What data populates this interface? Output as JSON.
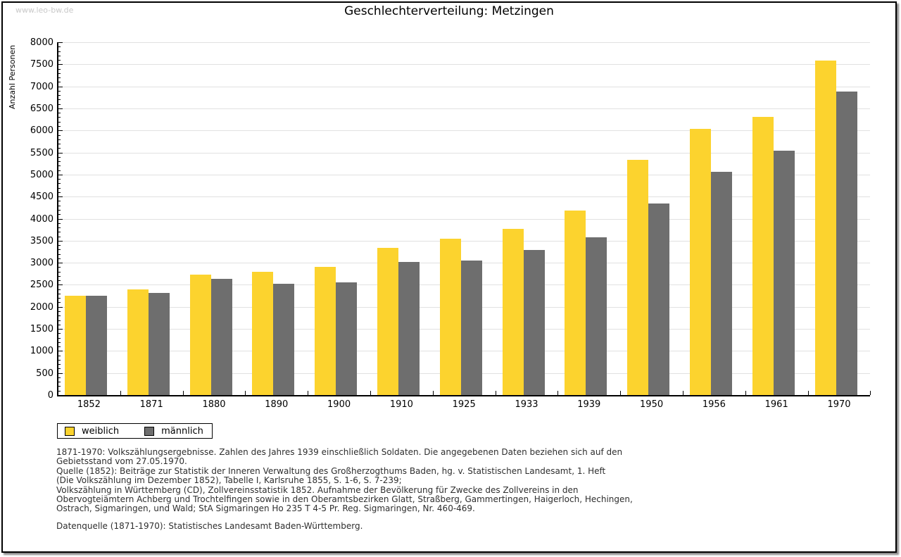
{
  "watermark": "www.leo-bw.de",
  "title": "Geschlechterverteilung: Metzingen",
  "legend": {
    "items": [
      {
        "label": "weiblich",
        "color": "#FCD32E"
      },
      {
        "label": "männlich",
        "color": "#6E6E6E"
      }
    ]
  },
  "chart_data": {
    "type": "bar",
    "title": "Geschlechterverteilung: Metzingen",
    "xlabel": "",
    "ylabel": "Anzahl Personen",
    "ylim": [
      0,
      8000
    ],
    "ytick_step": 500,
    "yminor_step": 100,
    "grid": true,
    "legend_position": "bottom-left",
    "grid_color": "#e1e1e1",
    "axis_color": "#000000",
    "categories": [
      "1852",
      "1871",
      "1880",
      "1890",
      "1900",
      "1910",
      "1925",
      "1933",
      "1939",
      "1950",
      "1956",
      "1961",
      "1970"
    ],
    "series": [
      {
        "name": "weiblich",
        "color": "#FCD32E",
        "values": [
          2250,
          2400,
          2730,
          2800,
          2910,
          3330,
          3550,
          3770,
          4190,
          5330,
          6030,
          6300,
          7590
        ]
      },
      {
        "name": "männlich",
        "color": "#6E6E6E",
        "values": [
          2250,
          2320,
          2640,
          2520,
          2560,
          3020,
          3050,
          3290,
          3580,
          4350,
          5060,
          5540,
          6880
        ]
      }
    ]
  },
  "footer": {
    "lines": [
      "1871-1970: Volkszählungsergebnisse. Zahlen des Jahres 1939 einschließlich Soldaten. Die angegebenen Daten beziehen sich auf den",
      "Gebietsstand vom 27.05.1970.",
      "Quelle (1852): Beiträge zur Statistik der Inneren Verwaltung des Großherzogthums Baden, hg. v. Statistischen Landesamt, 1. Heft",
      "(Die Volkszählung im Dezember 1852), Tabelle I, Karlsruhe 1855, S. 1-6, S. 7-239;",
      "Volkszählung in Württemberg (CD), Zollvereinsstatistik 1852. Aufnahme der Bevölkerung für Zwecke des Zollvereins in den",
      "Obervogteiämtern Achberg und Trochtelfingen sowie in den Oberamtsbezirken Glatt, Straßberg, Gammertingen, Haigerloch, Hechingen,",
      "Ostrach, Sigmaringen, und Wald; StA Sigmaringen Ho 235 T 4-5 Pr. Reg. Sigmaringen, Nr. 460-469."
    ],
    "source_line": "Datenquelle (1871-1970): Statistisches Landesamt Baden-Württemberg."
  }
}
